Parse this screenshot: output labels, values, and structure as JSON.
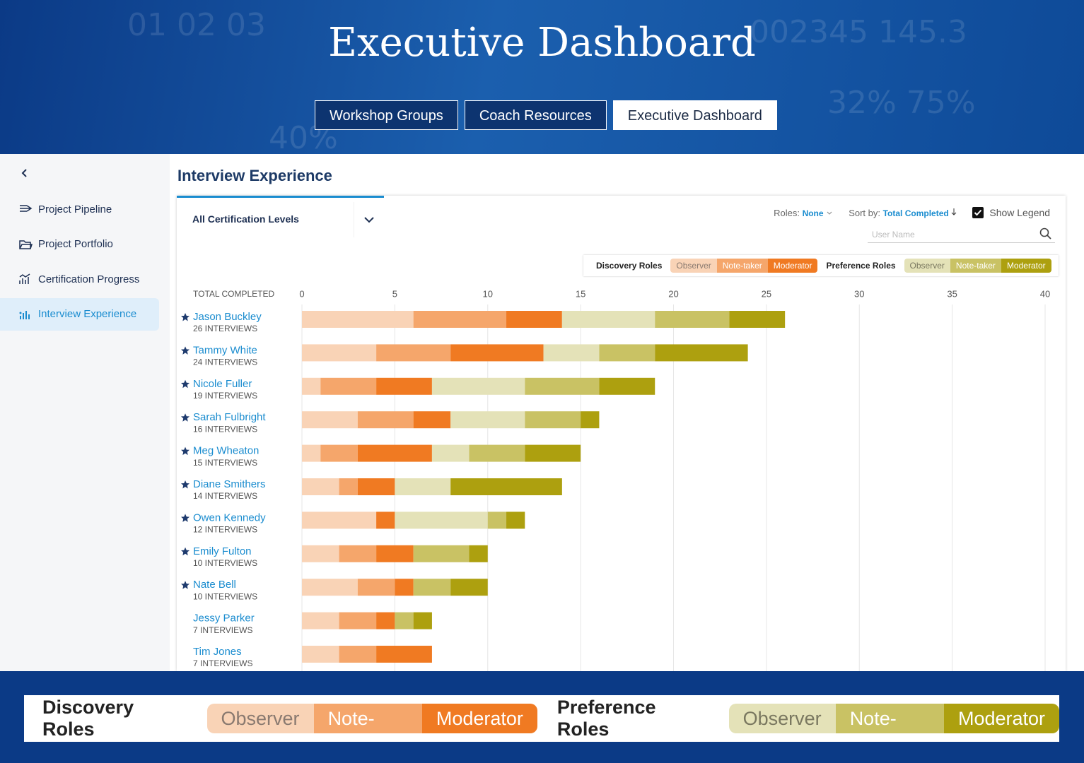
{
  "header": {
    "title": "Executive Dashboard",
    "tabs": [
      "Workshop Groups",
      "Coach Resources",
      "Executive Dashboard"
    ],
    "active_tab": 2
  },
  "sidebar": {
    "items": [
      "Project Pipeline",
      "Project Portfolio",
      "Certification Progress",
      "Interview Experience"
    ],
    "active": 3
  },
  "content": {
    "title": "Interview Experience",
    "filter": "All Certification Levels",
    "roles_label": "Roles:",
    "roles_value": "None",
    "sort_label": "Sort by:",
    "sort_value": "Total Completed",
    "show_legend_label": "Show Legend",
    "search_placeholder": "User Name"
  },
  "chart_data": {
    "type": "stacked-bar",
    "orientation": "horizontal",
    "axis_label": "TOTAL COMPLETED",
    "show_legend": true,
    "categories": [
      "Jason Buckley",
      "Tammy White",
      "Nicole Fuller",
      "Sarah Fulbright",
      "Meg Wheaton",
      "Diane Smithers",
      "Owen Kennedy",
      "Emily Fulton",
      "Nate Bell",
      "Jessy Parker",
      "Tim Jones"
    ],
    "subtitles": [
      "26 INTERVIEWS",
      "24 INTERVIEWS",
      "19 INTERVIEWS",
      "16 INTERVIEWS",
      "15 INTERVIEWS",
      "14 INTERVIEWS",
      "12 INTERVIEWS",
      "10 INTERVIEWS",
      "10 INTERVIEWS",
      "7 INTERVIEWS",
      "7 INTERVIEWS"
    ],
    "starred": [
      true,
      true,
      true,
      true,
      true,
      true,
      true,
      true,
      true,
      false,
      false
    ],
    "legend_groups": [
      "Discovery Roles",
      "Preference Roles"
    ],
    "series": [
      {
        "name": "Observer",
        "group": 0,
        "color": "#f9d3b6",
        "text_color": "#8a7a70",
        "values": [
          6,
          4,
          1,
          3,
          1,
          2,
          4,
          2,
          3,
          2,
          2
        ]
      },
      {
        "name": "Note-taker",
        "group": 0,
        "color": "#f5a66b",
        "text_color": "#ffffff",
        "values": [
          5,
          4,
          3,
          3,
          2,
          1,
          0,
          2,
          2,
          2,
          2
        ]
      },
      {
        "name": "Moderator",
        "group": 0,
        "color": "#f07a22",
        "text_color": "#ffffff",
        "values": [
          3,
          5,
          3,
          2,
          4,
          2,
          1,
          2,
          1,
          1,
          3
        ]
      },
      {
        "name": "Observer",
        "group": 1,
        "color": "#e4e2b8",
        "text_color": "#7a7860",
        "values": [
          5,
          3,
          5,
          4,
          2,
          3,
          5,
          0,
          0,
          0,
          0
        ]
      },
      {
        "name": "Note-taker",
        "group": 1,
        "color": "#c9c264",
        "text_color": "#ffffff",
        "values": [
          4,
          3,
          4,
          3,
          3,
          0,
          1,
          3,
          2,
          1,
          0
        ]
      },
      {
        "name": "Moderator",
        "group": 1,
        "color": "#ada00f",
        "text_color": "#ffffff",
        "values": [
          3,
          5,
          3,
          1,
          3,
          6,
          1,
          1,
          2,
          1,
          0
        ]
      }
    ],
    "xlim": [
      0,
      40
    ],
    "xticks": [
      0,
      5,
      10,
      15,
      20,
      25,
      30,
      35,
      40
    ],
    "grid": true
  }
}
